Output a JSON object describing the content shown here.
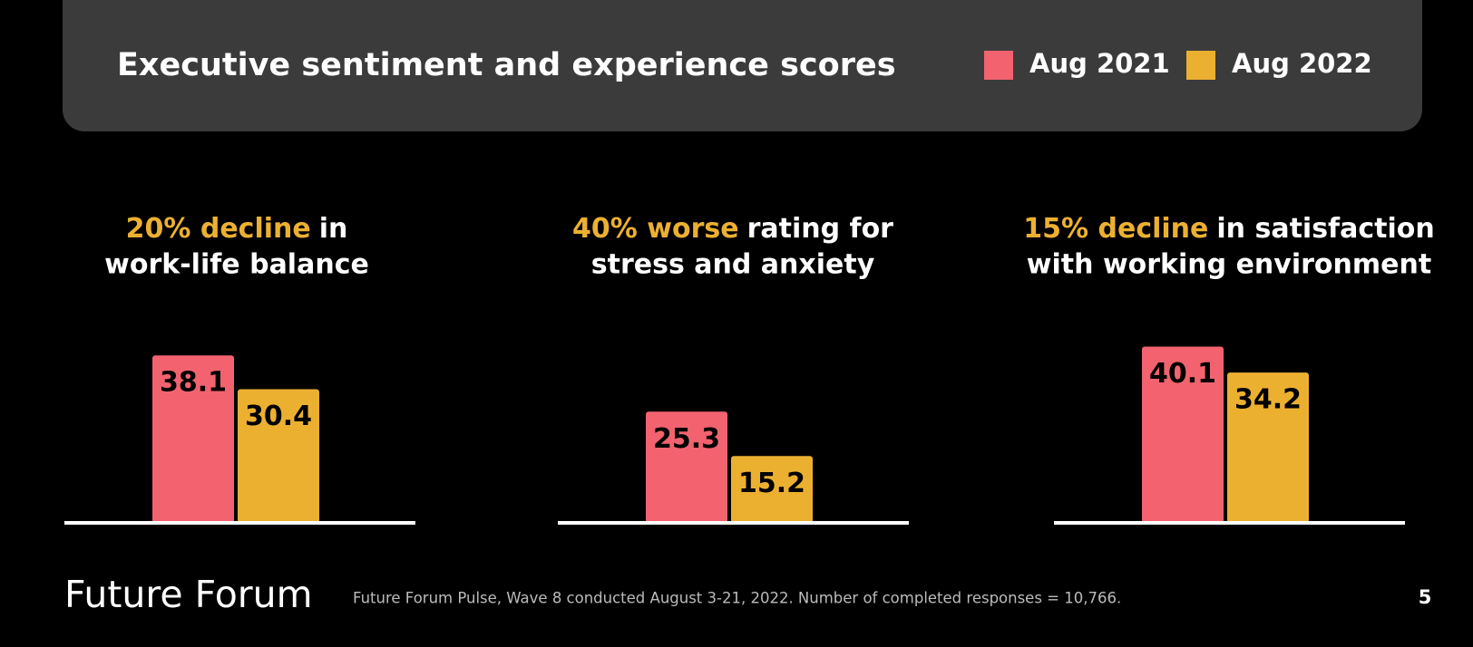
{
  "header": {
    "title": "Executive sentiment and experience scores"
  },
  "legend": [
    {
      "name": "Aug 2021",
      "color": "#f2636f"
    },
    {
      "name": "Aug 2022",
      "color": "#ecb031"
    }
  ],
  "chart_data": [
    {
      "type": "bar",
      "highlight": "20% decline",
      "title_lines": [
        "in",
        "work-life balance"
      ],
      "values": [
        38.1,
        30.4
      ]
    },
    {
      "type": "bar",
      "highlight": "40% worse",
      "title_lines": [
        "rating for",
        "stress and anxiety"
      ],
      "values": [
        25.3,
        15.2
      ]
    },
    {
      "type": "bar",
      "highlight": "15% decline",
      "title_lines": [
        "in satisfaction",
        "with working environment"
      ],
      "values": [
        40.1,
        34.2
      ]
    }
  ],
  "footer": {
    "logo": "Future Forum",
    "note": "Future Forum Pulse, Wave 8 conducted August 3-21, 2022. Number of completed responses = 10,766.",
    "page": "5"
  }
}
